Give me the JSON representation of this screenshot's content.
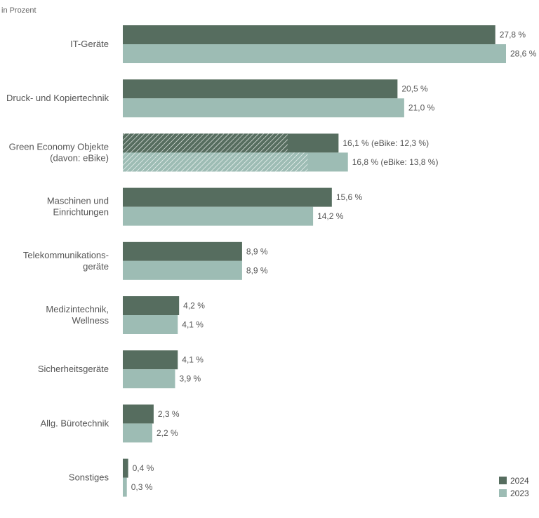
{
  "chart_data": {
    "type": "bar",
    "orientation": "horizontal",
    "unit_label": "in Prozent",
    "categories": [
      [
        "IT-Geräte"
      ],
      [
        "Druck- und Kopiertechnik"
      ],
      [
        "Green Economy Objekte",
        "(davon: eBike)"
      ],
      [
        "Maschinen und",
        "Einrichtungen"
      ],
      [
        "Telekommunikations-",
        "geräte"
      ],
      [
        "Medizintechnik,",
        "Wellness"
      ],
      [
        "Sicherheitsgeräte"
      ],
      [
        "Allg. Bürotechnik"
      ],
      [
        "Sonstiges"
      ]
    ],
    "series": [
      {
        "name": "2024",
        "color": "#566d5f",
        "values": [
          27.8,
          20.5,
          16.1,
          15.6,
          8.9,
          4.2,
          4.1,
          2.3,
          0.4
        ],
        "labels": [
          "27,8 %",
          "20,5 %",
          "16,1 % (eBike: 12,3 %)",
          "15,6 %",
          "8,9 %",
          "4,2 %",
          "4,1 %",
          "2,3 %",
          "0,4 %"
        ],
        "sub_values": [
          null,
          null,
          12.3,
          null,
          null,
          null,
          null,
          null,
          null
        ]
      },
      {
        "name": "2023",
        "color": "#9dbcb4",
        "values": [
          28.6,
          21.0,
          16.8,
          14.2,
          8.9,
          4.1,
          3.9,
          2.2,
          0.3
        ],
        "labels": [
          "28,6 %",
          "21,0 %",
          "16,8 % (eBike: 13,8 %)",
          "14,2 %",
          "8,9 %",
          "4,1 %",
          "3,9 %",
          "2,2 %",
          "0,3 %"
        ],
        "sub_values": [
          null,
          null,
          13.8,
          null,
          null,
          null,
          null,
          null,
          null
        ]
      }
    ],
    "legend": [
      "2024",
      "2023"
    ],
    "legend_position": "bottom-right",
    "xlim": [
      0,
      28.6
    ],
    "grid": false
  }
}
